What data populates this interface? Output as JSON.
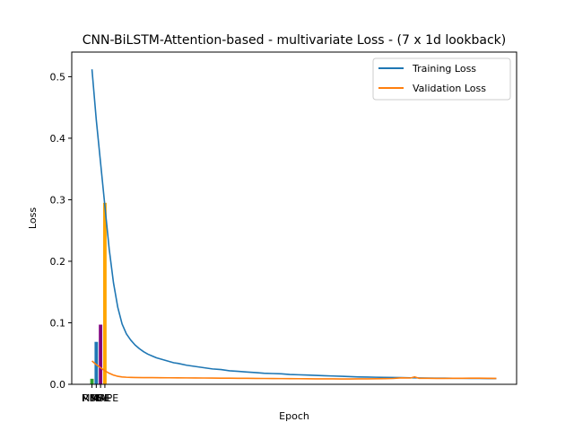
{
  "chart_data": {
    "type": "line",
    "title": "CNN-BiLSTM-Attention-based - multivariate Loss - (7 x 1d lookback)",
    "xlabel": "Epoch",
    "ylabel": "Loss",
    "ylim": [
      0,
      0.54
    ],
    "xlim": [
      -4.7,
      98.7
    ],
    "yticks": [
      0.0,
      0.1,
      0.2,
      0.3,
      0.4,
      0.5
    ],
    "ytick_labels": [
      "0.0",
      "0.1",
      "0.2",
      "0.3",
      "0.4",
      "0.5"
    ],
    "legend_position": "top-right",
    "grid": false,
    "series": [
      {
        "name": "Training Loss",
        "color": "#1f77b4",
        "x": [
          0,
          1,
          2,
          3,
          4,
          5,
          6,
          7,
          8,
          9,
          10,
          11,
          12,
          13,
          14,
          15,
          16,
          17,
          18,
          19,
          20,
          22,
          24,
          26,
          28,
          30,
          32,
          34,
          36,
          38,
          40,
          42,
          44,
          46,
          48,
          50,
          52,
          54,
          56,
          58,
          60,
          62,
          64,
          66,
          68,
          70,
          72,
          74,
          76,
          78,
          80,
          82,
          84,
          86,
          88,
          90,
          92,
          94
        ],
        "values": [
          0.512,
          0.43,
          0.36,
          0.29,
          0.22,
          0.165,
          0.125,
          0.098,
          0.082,
          0.072,
          0.064,
          0.058,
          0.053,
          0.049,
          0.046,
          0.043,
          0.041,
          0.039,
          0.037,
          0.035,
          0.034,
          0.031,
          0.029,
          0.027,
          0.025,
          0.024,
          0.022,
          0.021,
          0.02,
          0.019,
          0.018,
          0.0175,
          0.017,
          0.016,
          0.0155,
          0.015,
          0.0145,
          0.014,
          0.0135,
          0.013,
          0.0125,
          0.012,
          0.0118,
          0.0115,
          0.0112,
          0.011,
          0.0108,
          0.0106,
          0.0104,
          0.0102,
          0.01,
          0.0099,
          0.0098,
          0.0097,
          0.0096,
          0.0095,
          0.0094,
          0.0093
        ]
      },
      {
        "name": "Validation Loss",
        "color": "#ff7f0e",
        "x": [
          0,
          1,
          2,
          3,
          4,
          5,
          6,
          7,
          8,
          9,
          10,
          12,
          14,
          16,
          18,
          20,
          22,
          24,
          26,
          28,
          30,
          32,
          34,
          36,
          38,
          40,
          42,
          44,
          46,
          48,
          50,
          52,
          54,
          56,
          58,
          60,
          62,
          64,
          66,
          68,
          70,
          72,
          74,
          75,
          76,
          78,
          80,
          82,
          84,
          86,
          88,
          90,
          92,
          94
        ],
        "values": [
          0.038,
          0.032,
          0.027,
          0.022,
          0.018,
          0.015,
          0.013,
          0.012,
          0.0115,
          0.0112,
          0.011,
          0.0109,
          0.0108,
          0.0107,
          0.0106,
          0.0105,
          0.0104,
          0.0103,
          0.0102,
          0.0101,
          0.01,
          0.0099,
          0.0098,
          0.0097,
          0.0096,
          0.0095,
          0.0094,
          0.0093,
          0.0092,
          0.0091,
          0.009,
          0.0089,
          0.0088,
          0.0088,
          0.0087,
          0.0087,
          0.0088,
          0.0089,
          0.009,
          0.0092,
          0.0095,
          0.0105,
          0.0102,
          0.012,
          0.0098,
          0.0097,
          0.0096,
          0.0096,
          0.0097,
          0.0098,
          0.0099,
          0.01,
          0.0097,
          0.0096
        ]
      }
    ],
    "bars": [
      {
        "x": 0.0,
        "value": 0.009,
        "color": "#2ca02c"
      },
      {
        "x": 1.0,
        "value": 0.069,
        "color": "#1f77b4"
      },
      {
        "x": 2.0,
        "value": 0.097,
        "color": "#800080"
      },
      {
        "x": 3.0,
        "value": 0.295,
        "color": "#ffa500"
      }
    ],
    "bar_tick_labels": [
      {
        "x": 0.0,
        "label": "MSE"
      },
      {
        "x": 1.0,
        "label": "RMSE"
      },
      {
        "x": 2.0,
        "label": "MAE"
      },
      {
        "x": 3.0,
        "label": "MAPE"
      }
    ]
  }
}
